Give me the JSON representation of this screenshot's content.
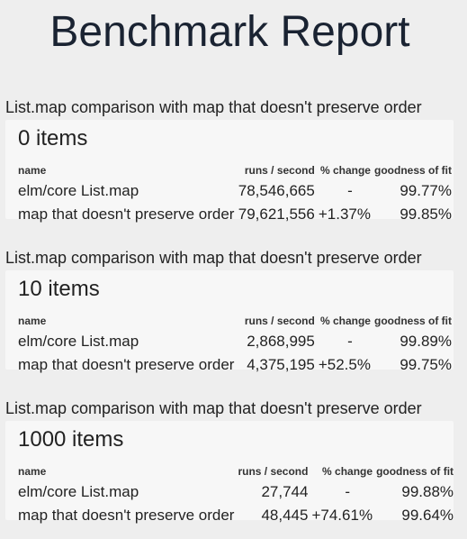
{
  "page": {
    "title": "Benchmark Report"
  },
  "sections": [
    {
      "heading": "List.map comparison with map that doesn't preserve order",
      "card_title": "0 items",
      "columns": [
        "name",
        "runs / second",
        "% change",
        "goodness of fit"
      ],
      "rows": [
        {
          "name": "elm/core List.map",
          "runs": "78,546,665",
          "change": "-",
          "fit": "99.77%"
        },
        {
          "name": "map that doesn't preserve order",
          "runs": "79,621,556",
          "change": "+1.37%",
          "fit": "99.85%"
        }
      ]
    },
    {
      "heading": "List.map comparison with map that doesn't preserve order",
      "card_title": "10 items",
      "columns": [
        "name",
        "runs / second",
        "% change",
        "goodness of fit"
      ],
      "rows": [
        {
          "name": "elm/core List.map",
          "runs": "2,868,995",
          "change": "-",
          "fit": "99.89%"
        },
        {
          "name": "map that doesn't preserve order",
          "runs": "4,375,195",
          "change": "+52.5%",
          "fit": "99.75%"
        }
      ]
    },
    {
      "heading": "List.map comparison with map that doesn't preserve order",
      "card_title": "1000 items",
      "columns": [
        "name",
        "runs / second",
        "% change",
        "goodness of fit"
      ],
      "rows": [
        {
          "name": "elm/core List.map",
          "runs": "27,744",
          "change": "-",
          "fit": "99.88%"
        },
        {
          "name": "map that doesn't preserve order",
          "runs": "48,445",
          "change": "+74.61%",
          "fit": "99.64%"
        }
      ]
    }
  ]
}
